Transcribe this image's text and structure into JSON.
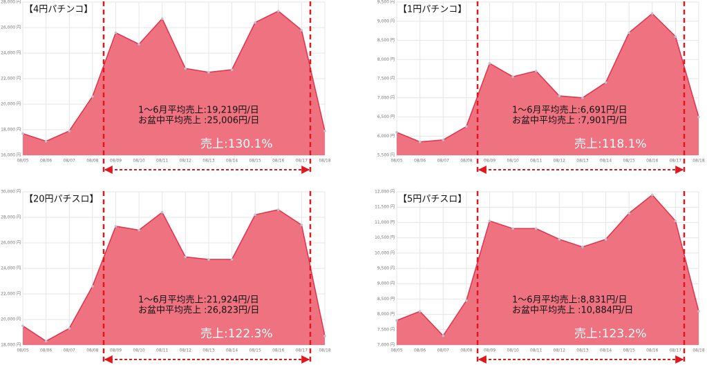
{
  "chart_data": [
    {
      "type": "area",
      "title": "【4円パチンコ】",
      "color": "#ee6a7a",
      "line_color": "#e0324b",
      "grid": true,
      "categories": [
        "08/05",
        "08/06",
        "08/07",
        "08/08",
        "08/09",
        "08/10",
        "08/11",
        "08/12",
        "08/13",
        "08/14",
        "08/15",
        "08/16",
        "08/17",
        "08/18"
      ],
      "values": [
        17700,
        17100,
        17900,
        20600,
        25600,
        24700,
        26700,
        22800,
        22500,
        22700,
        26400,
        27300,
        25800,
        17900
      ],
      "ylim": [
        16000,
        28000
      ],
      "yticks": [
        {
          "value": 16000,
          "label": "16,000 円"
        },
        {
          "value": 18000,
          "label": "18,000 円"
        },
        {
          "value": 20000,
          "label": "20,000 円"
        },
        {
          "value": 22000,
          "label": "22,000 円"
        },
        {
          "value": 24000,
          "label": "24,000 円"
        },
        {
          "value": 26000,
          "label": "26,000 円"
        },
        {
          "value": 28000,
          "label": "28,000 円"
        }
      ],
      "annotations": [
        "1～6月平均売上:19,219円/日",
        "お盆中平均売上 :25,006円/日"
      ],
      "highlight": "売上:130.1%"
    },
    {
      "type": "area",
      "title": "【1円パチンコ】",
      "color": "#ee6a7a",
      "line_color": "#e0324b",
      "grid": true,
      "categories": [
        "08/05",
        "08/06",
        "08/07",
        "08/08",
        "08/09",
        "08/10",
        "08/11",
        "08/12",
        "08/13",
        "08/14",
        "08/15",
        "08/16",
        "08/17",
        "08/18"
      ],
      "values": [
        6100,
        5850,
        5900,
        6250,
        7900,
        7550,
        7700,
        7050,
        7000,
        7400,
        8700,
        9200,
        8600,
        6500
      ],
      "ylim": [
        5500,
        9500
      ],
      "yticks": [
        {
          "value": 5500,
          "label": "5,500 円"
        },
        {
          "value": 6000,
          "label": "6,000 円"
        },
        {
          "value": 6500,
          "label": "6,500 円"
        },
        {
          "value": 7000,
          "label": "7,000 円"
        },
        {
          "value": 7500,
          "label": "7,500 円"
        },
        {
          "value": 8000,
          "label": "8,000 円"
        },
        {
          "value": 8500,
          "label": "8,500 円"
        },
        {
          "value": 9000,
          "label": "9,000 円"
        },
        {
          "value": 9500,
          "label": "9,500 円"
        }
      ],
      "annotations": [
        "1～6月平均売上:6,691円/日",
        "お盆中平均売上 :7,901円/日"
      ],
      "highlight": "売上:118.1%"
    },
    {
      "type": "area",
      "title": "【20円パチスロ】",
      "color": "#ee6a7a",
      "line_color": "#e0324b",
      "grid": true,
      "categories": [
        "08/05",
        "08/06",
        "08/07",
        "08/08",
        "08/09",
        "08/10",
        "08/11",
        "08/12",
        "08/13",
        "08/14",
        "08/15",
        "08/16",
        "08/17",
        "08/18"
      ],
      "values": [
        19500,
        18300,
        19300,
        22600,
        27300,
        27000,
        28400,
        24900,
        24700,
        24700,
        28200,
        28600,
        27400,
        18700
      ],
      "ylim": [
        18000,
        30000
      ],
      "yticks": [
        {
          "value": 18000,
          "label": "18,000 円"
        },
        {
          "value": 20000,
          "label": "20,000 円"
        },
        {
          "value": 22000,
          "label": "22,000 円"
        },
        {
          "value": 24000,
          "label": "24,000 円"
        },
        {
          "value": 26000,
          "label": "26,000 円"
        },
        {
          "value": 28000,
          "label": "28,000 円"
        },
        {
          "value": 30000,
          "label": "30,000 円"
        }
      ],
      "annotations": [
        "1～6月平均売上:21,924円/日",
        "お盆中平均売上 :26,823円/日"
      ],
      "highlight": "売上:122.3%"
    },
    {
      "type": "area",
      "title": "【5円パチスロ】",
      "color": "#ee6a7a",
      "line_color": "#e0324b",
      "grid": true,
      "categories": [
        "08/05",
        "08/06",
        "08/07",
        "08/08",
        "08/09",
        "08/10",
        "08/11",
        "08/12",
        "08/13",
        "08/14",
        "08/15",
        "08/16",
        "08/17",
        "08/18"
      ],
      "values": [
        7800,
        8100,
        7300,
        8450,
        11050,
        10800,
        10800,
        10450,
        10200,
        10450,
        11300,
        11900,
        11050,
        8100
      ],
      "ylim": [
        7000,
        12000
      ],
      "yticks": [
        {
          "value": 7000,
          "label": "7,000 円"
        },
        {
          "value": 7500,
          "label": "7,500 円"
        },
        {
          "value": 8000,
          "label": "8,000 円"
        },
        {
          "value": 8500,
          "label": "8,500 円"
        },
        {
          "value": 9000,
          "label": "9,000 円"
        },
        {
          "value": 9500,
          "label": "9,500 円"
        },
        {
          "value": 10000,
          "label": "10,000 円"
        },
        {
          "value": 10500,
          "label": "10,500 円"
        },
        {
          "value": 11000,
          "label": "11,000 円"
        },
        {
          "value": 11500,
          "label": "11,500 円"
        },
        {
          "value": 12000,
          "label": "12,000 円"
        }
      ],
      "annotations": [
        "1～6月平均売上:8,831円/日",
        "お盆中平均売上 :10,884円/日"
      ],
      "highlight": "売上:123.2%"
    }
  ]
}
